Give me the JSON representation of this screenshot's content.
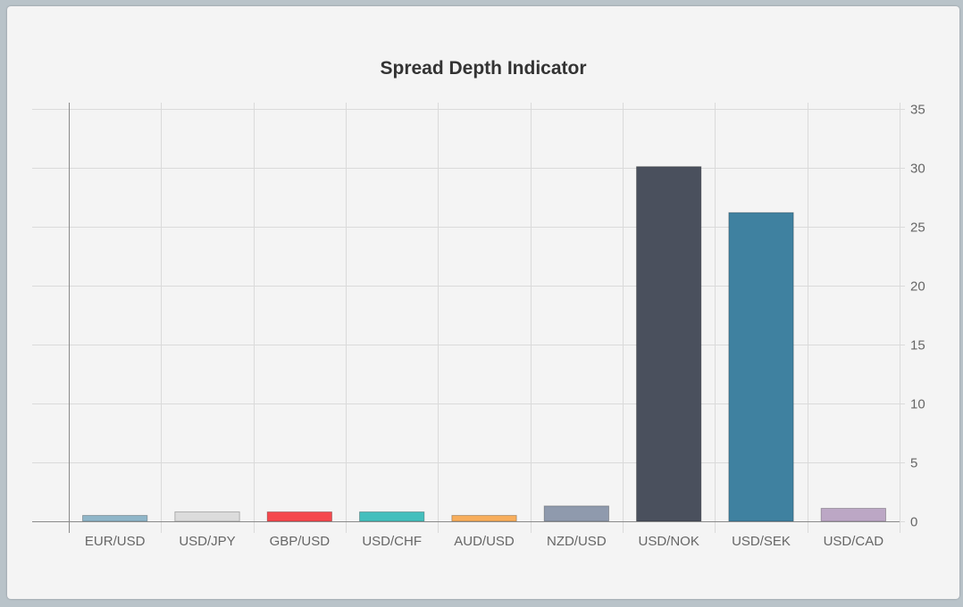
{
  "chart_data": {
    "type": "bar",
    "title": "Spread Depth Indicator",
    "categories": [
      "EUR/USD",
      "USD/JPY",
      "GBP/USD",
      "USD/CHF",
      "AUD/USD",
      "NZD/USD",
      "USD/NOK",
      "USD/SEK",
      "USD/CAD"
    ],
    "values": [
      0.5,
      0.8,
      0.8,
      0.8,
      0.5,
      1.3,
      30.1,
      26.2,
      1.1
    ],
    "colors": [
      "#8fb6c9",
      "#dcdcdc",
      "#f5484d",
      "#44bfbd",
      "#f8ae5c",
      "#8f9aad",
      "#4a505d",
      "#3f81a0",
      "#bca7c5"
    ],
    "ylim": [
      0,
      35
    ],
    "yticks": [
      0,
      5,
      10,
      15,
      20,
      25,
      30,
      35
    ],
    "y_axis_position": "right",
    "grid": true
  }
}
